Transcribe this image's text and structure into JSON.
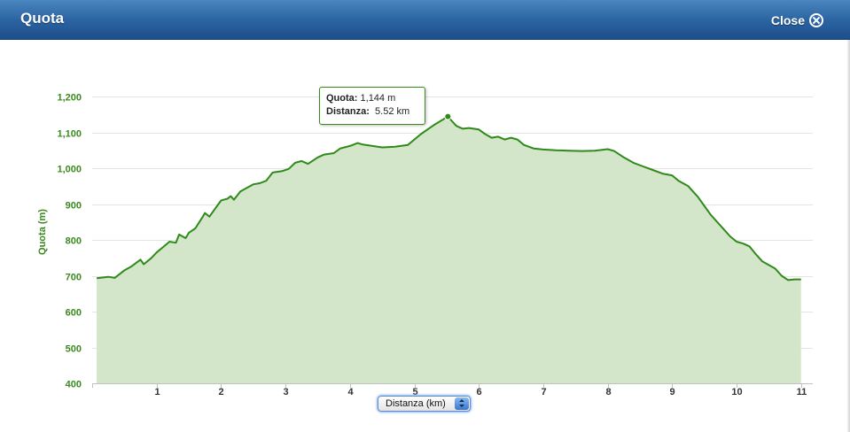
{
  "window": {
    "title": "Quota",
    "close_label": "Close",
    "close_icon": "close-circle-icon"
  },
  "colors": {
    "header_top": "#4a86c0",
    "header_bottom": "#1c4f8b",
    "line": "#2f8a1a",
    "area_fill": "#d3e6c9",
    "axis_label": "#3a8a1e"
  },
  "tooltip": {
    "quota_key": "Quota:",
    "quota_value": "1,144 m",
    "distanza_key": "Distanza:",
    "distanza_value": "5.52 km"
  },
  "x_selector": {
    "selected": "Distanza (km)"
  },
  "chart_data": {
    "type": "area",
    "ylabel": "Quota (m)",
    "xlabel": "",
    "xlim": [
      0,
      11
    ],
    "ylim": [
      400,
      1200
    ],
    "y_ticks": [
      400,
      500,
      600,
      700,
      800,
      900,
      1000,
      1100,
      1200
    ],
    "y_tick_labels": [
      "400",
      "500",
      "600",
      "700",
      "800",
      "900",
      "1,000",
      "1,100",
      "1,200"
    ],
    "x_ticks": [
      1,
      2,
      3,
      4,
      5,
      6,
      7,
      8,
      9,
      10,
      11
    ],
    "x_tick_labels": [
      "1",
      "2",
      "3",
      "4",
      "5",
      "6",
      "7",
      "8",
      "9",
      "10",
      "11"
    ],
    "grid": true,
    "highlight": {
      "x": 5.52,
      "y": 1144
    },
    "series": [
      {
        "x": [
          0.07,
          0.25,
          0.35,
          0.5,
          0.6,
          0.75,
          0.8,
          0.92,
          1.0,
          1.1,
          1.2,
          1.3,
          1.35,
          1.45,
          1.5,
          1.6,
          1.7,
          1.75,
          1.82,
          1.9,
          2.0,
          2.1,
          2.15,
          2.2,
          2.3,
          2.45,
          2.5,
          2.6,
          2.7,
          2.8,
          2.95,
          3.05,
          3.15,
          3.25,
          3.35,
          3.5,
          3.6,
          3.75,
          3.85,
          4.0,
          4.12,
          4.2,
          4.35,
          4.5,
          4.7,
          4.9,
          5.0,
          5.1,
          5.3,
          5.52,
          5.65,
          5.75,
          5.85,
          6.0,
          6.1,
          6.2,
          6.3,
          6.4,
          6.5,
          6.6,
          6.7,
          6.85,
          7.0,
          7.2,
          7.4,
          7.6,
          7.8,
          8.0,
          8.1,
          8.25,
          8.4,
          8.55,
          8.7,
          8.85,
          9.0,
          9.1,
          9.25,
          9.4,
          9.5,
          9.6,
          9.7,
          9.8,
          9.9,
          10.0,
          10.1,
          10.2,
          10.3,
          10.4,
          10.5,
          10.6,
          10.7,
          10.8,
          10.9,
          11.0
        ],
        "y": [
          693,
          697,
          694,
          715,
          725,
          745,
          732,
          750,
          765,
          780,
          795,
          792,
          815,
          805,
          820,
          832,
          860,
          875,
          865,
          885,
          910,
          915,
          922,
          912,
          935,
          950,
          955,
          958,
          965,
          988,
          992,
          998,
          1015,
          1020,
          1012,
          1030,
          1038,
          1042,
          1055,
          1062,
          1070,
          1066,
          1062,
          1058,
          1060,
          1065,
          1080,
          1095,
          1120,
          1144,
          1118,
          1110,
          1112,
          1108,
          1095,
          1085,
          1088,
          1080,
          1085,
          1080,
          1065,
          1055,
          1052,
          1050,
          1049,
          1048,
          1049,
          1053,
          1048,
          1030,
          1015,
          1005,
          995,
          985,
          980,
          965,
          950,
          920,
          895,
          870,
          850,
          830,
          810,
          795,
          790,
          782,
          760,
          740,
          730,
          720,
          700,
          688,
          690,
          690
        ]
      }
    ]
  }
}
